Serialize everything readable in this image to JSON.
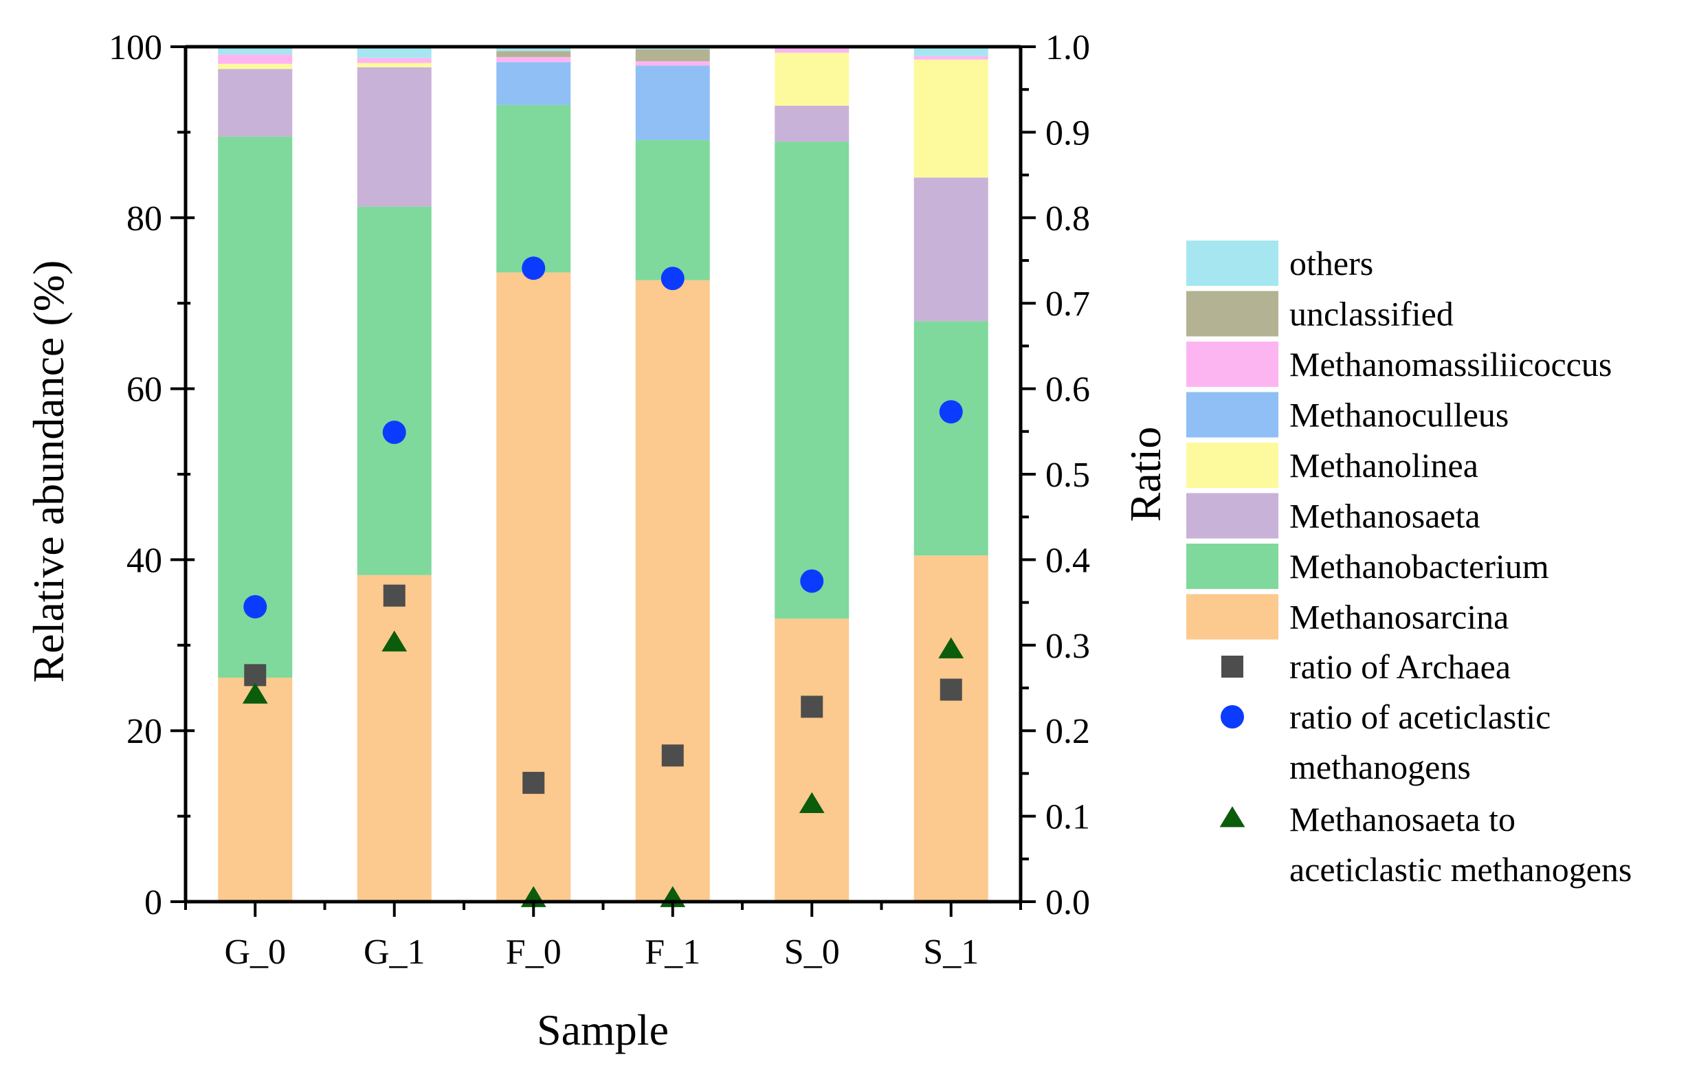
{
  "chart_data": {
    "type": "bar",
    "stacked": true,
    "title": "",
    "xlabel": "Sample",
    "ylabel": "Relative abundance (%)",
    "y2label": "Ratio",
    "ylim": [
      0,
      100
    ],
    "y2lim": [
      0.0,
      1.0
    ],
    "categories": [
      "G_0",
      "G_1",
      "F_0",
      "F_1",
      "S_0",
      "S_1"
    ],
    "y_ticks": [
      "0",
      "20",
      "40",
      "60",
      "80",
      "100"
    ],
    "y2_ticks": [
      "0.0",
      "0.1",
      "0.2",
      "0.3",
      "0.4",
      "0.5",
      "0.6",
      "0.7",
      "0.8",
      "0.9",
      "1.0"
    ],
    "series": [
      {
        "name": "Methanosarcina",
        "color": "#FCC98E",
        "values": [
          26.2,
          38.2,
          73.6,
          72.7,
          33.1,
          40.5
        ]
      },
      {
        "name": "Methanobacterium",
        "color": "#7FD99C",
        "values": [
          63.3,
          43.1,
          19.6,
          16.4,
          55.8,
          27.4
        ]
      },
      {
        "name": "Methanosaeta",
        "color": "#C9B2D8",
        "values": [
          7.9,
          16.3,
          0.0,
          0.0,
          4.2,
          16.8
        ]
      },
      {
        "name": "Methanolinea",
        "color": "#FDFA9D",
        "values": [
          0.6,
          0.5,
          0.0,
          0.0,
          6.2,
          13.8
        ]
      },
      {
        "name": "Methanoculleus",
        "color": "#8FBFF5",
        "values": [
          0.0,
          0.0,
          5.0,
          8.7,
          0.0,
          0.0
        ]
      },
      {
        "name": "Methanomassiliicoccus",
        "color": "#FDB5F2",
        "values": [
          1.1,
          0.6,
          0.6,
          0.5,
          0.5,
          0.4
        ]
      },
      {
        "name": "unclassified",
        "color": "#B3B293",
        "values": [
          0.0,
          0.0,
          0.7,
          1.4,
          0.0,
          0.0
        ]
      },
      {
        "name": "others",
        "color": "#A6E6F0",
        "values": [
          0.9,
          1.3,
          0.5,
          0.3,
          0.2,
          1.1
        ]
      }
    ],
    "ratio_series": [
      {
        "name": "ratio of Archaea",
        "marker": "square",
        "color": "#4D4D4D",
        "values": [
          0.265,
          0.358,
          0.139,
          0.171,
          0.228,
          0.248
        ]
      },
      {
        "name": "ratio of aceticlastic methanogens",
        "marker": "circle",
        "color": "#0B3BFF",
        "values": [
          0.345,
          0.549,
          0.741,
          0.729,
          0.375,
          0.573
        ]
      },
      {
        "name": "Methanosaeta to aceticlastic methanogens",
        "marker": "triangle",
        "color": "#0B5C0B",
        "values": [
          0.241,
          0.302,
          0.003,
          0.003,
          0.113,
          0.294
        ]
      }
    ],
    "legend": {
      "position": "right",
      "bar_entries": [
        "others",
        "unclassified",
        "Methanomassiliicoccus",
        "Methanoculleus",
        "Methanolinea",
        "Methanosaeta",
        "Methanobacterium",
        "Methanosarcina"
      ],
      "marker_entries": [
        {
          "marker": "square",
          "color": "#4D4D4D",
          "lines": [
            "ratio of Archaea"
          ]
        },
        {
          "marker": "circle",
          "color": "#0B3BFF",
          "lines": [
            "ratio of aceticlastic",
            "methanogens"
          ]
        },
        {
          "marker": "triangle",
          "color": "#0B5C0B",
          "lines": [
            "Methanosaeta to",
            "aceticlastic methanogens"
          ]
        }
      ]
    }
  }
}
